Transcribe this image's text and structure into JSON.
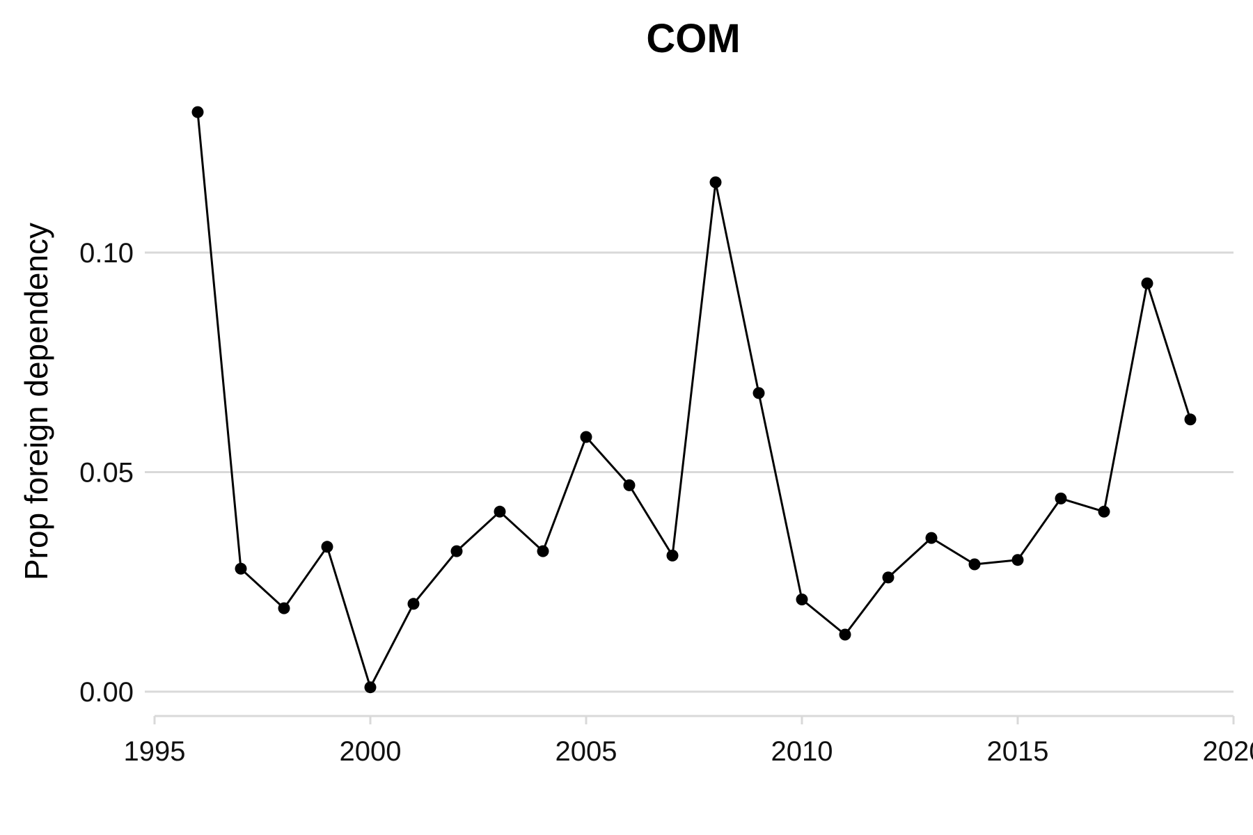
{
  "chart_data": {
    "type": "line",
    "title": "COM",
    "xlabel": "",
    "ylabel": "Prop foreign dependency",
    "xlim": [
      1995,
      2020
    ],
    "ylim": [
      -0.005,
      0.135
    ],
    "x_ticks": [
      1995,
      2000,
      2005,
      2010,
      2015,
      2020
    ],
    "x_tick_labels": [
      "1995",
      "2000",
      "2005",
      "2010",
      "2015",
      "2020"
    ],
    "y_ticks": [
      0.0,
      0.05,
      0.1
    ],
    "y_tick_labels": [
      "0.00",
      "0.05",
      "0.10"
    ],
    "grid": "horizontal",
    "legend": "none",
    "colors": {
      "line": "#000000",
      "point": "#000000",
      "grid": "#d9d9d9",
      "background": "#ffffff"
    },
    "x": [
      1996,
      1997,
      1998,
      1999,
      2000,
      2001,
      2002,
      2003,
      2004,
      2005,
      2006,
      2007,
      2008,
      2009,
      2010,
      2011,
      2012,
      2013,
      2014,
      2015,
      2016,
      2017,
      2018,
      2019
    ],
    "series": [
      {
        "values": [
          0.132,
          0.028,
          0.019,
          0.033,
          0.001,
          0.02,
          0.032,
          0.041,
          0.032,
          0.058,
          0.047,
          0.031,
          0.116,
          0.068,
          0.021,
          0.013,
          0.026,
          0.035,
          0.029,
          0.03,
          0.044,
          0.041,
          0.093,
          0.062
        ]
      }
    ]
  }
}
